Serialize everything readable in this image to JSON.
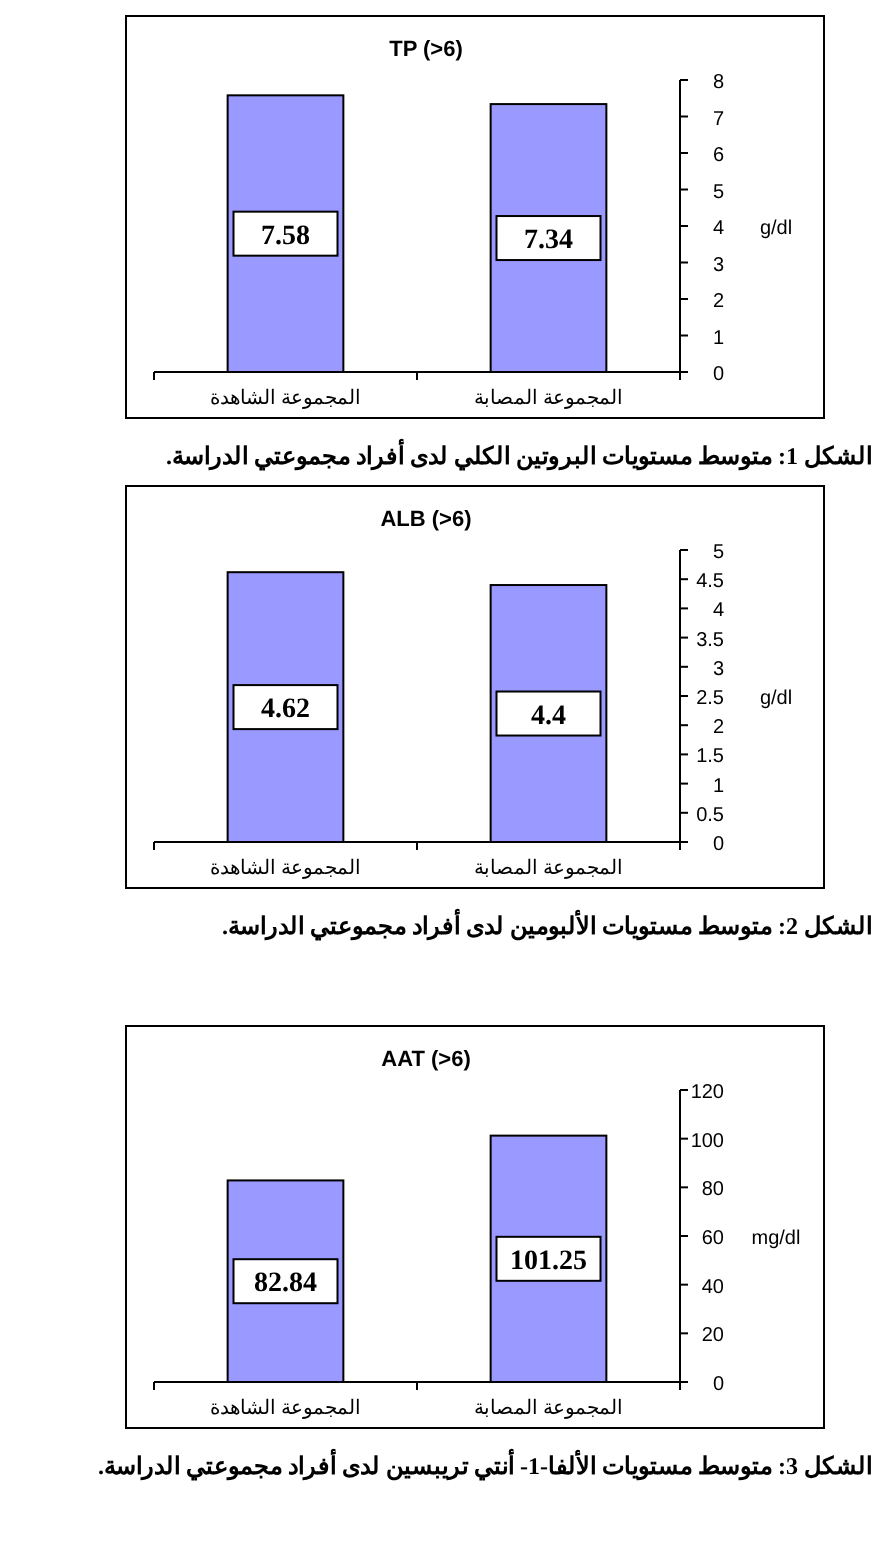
{
  "chart_data": [
    {
      "type": "bar",
      "title": "TP (>6)",
      "categories": [
        "المجموعة الشاهدة",
        "المجموعة المصابة"
      ],
      "series": [
        {
          "color": "#9999ff",
          "values": [
            7.58,
            7.34
          ]
        }
      ],
      "ylim": [
        0,
        8
      ],
      "yticks": [
        0,
        1,
        2,
        3,
        4,
        5,
        6,
        7,
        8
      ],
      "ylabel": "g/dl",
      "data_labels": true,
      "annotations": [
        "الشكل 1: متوسط مستويات البروتين الكلي لدى أفراد مجموعتي الدراسة."
      ]
    },
    {
      "type": "bar",
      "title": "ALB (>6)",
      "categories": [
        "المجموعة الشاهدة",
        "المجموعة المصابة"
      ],
      "series": [
        {
          "color": "#9999ff",
          "values": [
            4.62,
            4.4
          ]
        }
      ],
      "ylim": [
        0,
        5
      ],
      "yticks": [
        0,
        0.5,
        1,
        1.5,
        2,
        2.5,
        3,
        3.5,
        4,
        4.5,
        5
      ],
      "ylabel": "g/dl",
      "data_labels": true,
      "annotations": [
        "الشكل 2: متوسط مستويات الألبومين لدى أفراد مجموعتي الدراسة."
      ]
    },
    {
      "type": "bar",
      "title": "AAT (>6)",
      "categories": [
        "المجموعة الشاهدة",
        "المجموعة المصابة"
      ],
      "series": [
        {
          "color": "#9999ff",
          "values": [
            82.84,
            101.25
          ]
        }
      ],
      "ylim": [
        0,
        120
      ],
      "yticks": [
        0,
        20,
        40,
        60,
        80,
        100,
        120
      ],
      "ylabel": "mg/dl",
      "data_labels": true,
      "annotations": [
        "الشكل 3: متوسط مستويات الألفا-1- أنتي تريبسين لدى أفراد مجموعتي الدراسة."
      ]
    }
  ]
}
